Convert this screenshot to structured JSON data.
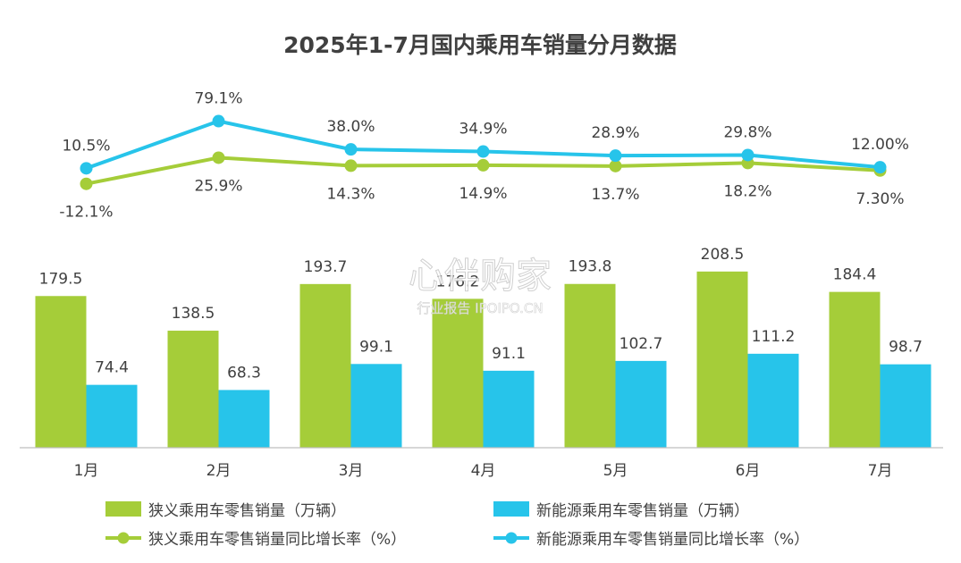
{
  "chart_data": {
    "type": "bar",
    "title": "2025年1-7月国内乘用车销量分月数据",
    "categories": [
      "1月",
      "2月",
      "3月",
      "4月",
      "5月",
      "6月",
      "7月"
    ],
    "bar_series": [
      {
        "name": "狭义乘用车零售销量（万辆）",
        "color": "#a5cd39",
        "values": [
          179.5,
          138.5,
          193.7,
          176.2,
          193.8,
          208.5,
          184.4
        ],
        "labels": [
          "179.5",
          "138.5",
          "193.7",
          "176.2",
          "193.8",
          "208.5",
          "184.4"
        ]
      },
      {
        "name": "新能源乘用车零售销量（万辆）",
        "color": "#27c4ea",
        "values": [
          74.4,
          68.3,
          99.1,
          91.1,
          102.7,
          111.2,
          98.7
        ],
        "labels": [
          "74.4",
          "68.3",
          "99.1",
          "91.1",
          "102.7",
          "111.2",
          "98.7"
        ]
      }
    ],
    "line_series": [
      {
        "name": "狭义乘用车零售销量同比增长率（%）",
        "color": "#a5cd39",
        "values": [
          -12.1,
          25.9,
          14.3,
          14.9,
          13.7,
          18.2,
          7.3
        ],
        "labels": [
          "-12.1%",
          "25.9%",
          "14.3%",
          "14.9%",
          "13.7%",
          "18.2%",
          "7.30%"
        ]
      },
      {
        "name": "新能源乘用车零售销量同比增长率（%）",
        "color": "#27c4ea",
        "values": [
          10.5,
          79.1,
          38.0,
          34.9,
          28.9,
          29.8,
          12.0
        ],
        "labels": [
          "10.5%",
          "79.1%",
          "38.0%",
          "34.9%",
          "28.9%",
          "29.8%",
          "12.00%"
        ]
      }
    ],
    "legend_position": "bottom",
    "grid": false
  },
  "watermark": {
    "main": "心伴购家",
    "sub": "行业报告 IPOIPO.CN"
  }
}
